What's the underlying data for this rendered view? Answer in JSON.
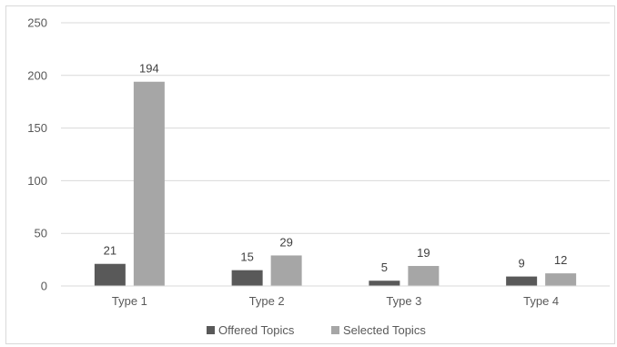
{
  "chart_data": {
    "type": "bar",
    "categories": [
      "Type 1",
      "Type 2",
      "Type 3",
      "Type 4"
    ],
    "series": [
      {
        "name": "Offered Topics",
        "values": [
          21,
          15,
          5,
          9
        ],
        "color": "#595959"
      },
      {
        "name": "Selected Topics",
        "values": [
          194,
          29,
          19,
          12
        ],
        "color": "#a6a6a6"
      }
    ],
    "y_ticks": [
      "0",
      "50",
      "100",
      "150",
      "200",
      "250"
    ],
    "ylim": [
      0,
      250
    ],
    "grid": true,
    "gridline_color": "#d9d9d9",
    "data_labels": true,
    "legend_position": "bottom"
  }
}
